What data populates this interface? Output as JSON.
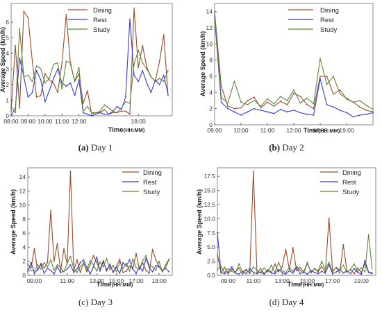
{
  "colors": {
    "dining": "#9b4a2a",
    "rest": "#3a3ad8",
    "study": "#5a8a3a"
  },
  "chart_data": [
    {
      "type": "line",
      "caption_letter": "(a)",
      "caption_text": "Day 1",
      "ylabel": "Average Speed (km/h)",
      "xlabel": "Time",
      "xlabel_unit": "(HH:MM)",
      "xlim": [
        0,
        38
      ],
      "ylim": [
        0,
        7.2
      ],
      "yticks": [
        0,
        1,
        2,
        3,
        4,
        5,
        6
      ],
      "xtick_labels": [
        {
          "x": 0,
          "label": "08:00"
        },
        {
          "x": 4,
          "label": "09:00"
        },
        {
          "x": 8,
          "label": "10:00"
        },
        {
          "x": 12,
          "label": "11:00"
        },
        {
          "x": 16,
          "label": "12:00"
        },
        {
          "x": 30,
          "label": "18:00"
        }
      ],
      "series": [
        {
          "name": "Dining",
          "color_key": "dining",
          "values": [
            0.3,
            4.5,
            0.5,
            6.7,
            6.3,
            3.5,
            1.2,
            1.3,
            2.7,
            2.3,
            2.1,
            1.5,
            3.4,
            6.5,
            3.3,
            2.2,
            2.7,
            0.8,
            1.6,
            0.1,
            0.2,
            0.2,
            0.4,
            0.1,
            0.2,
            0.2,
            0.3,
            0.3,
            0.1,
            6.9,
            3.1,
            4.5,
            3.1,
            2.5,
            2.2,
            3.5,
            5.2,
            1.3
          ]
        },
        {
          "name": "Rest",
          "color_key": "rest",
          "values": [
            0.0,
            0.5,
            3.7,
            2.5,
            1.2,
            1.5,
            2.9,
            2.3,
            0.9,
            1.6,
            2.4,
            3.0,
            2.1,
            1.9,
            2.1,
            1.3,
            2.3,
            0.2,
            0.1,
            0.0,
            0.1,
            0.2,
            0.1,
            0.1,
            0.3,
            0.6,
            0.4,
            1.2,
            6.2,
            2.6,
            2.2,
            2.9,
            2.1,
            1.5,
            2.3,
            2.0,
            2.6,
            1.4
          ]
        },
        {
          "name": "Study",
          "color_key": "study",
          "values": [
            0.6,
            0.2,
            5.6,
            2.5,
            2.6,
            2.2,
            3.2,
            3.0,
            2.1,
            2.4,
            3.3,
            3.4,
            1.7,
            3.5,
            3.4,
            2.2,
            3.1,
            0.3,
            0.6,
            0.2,
            0.2,
            0.3,
            0.7,
            0.5,
            0.3,
            0.2,
            0.5,
            0.9,
            0.8,
            3.3,
            4.2,
            3.4,
            3.0,
            2.5,
            2.2,
            2.4,
            2.2,
            2.9
          ]
        }
      ]
    },
    {
      "type": "line",
      "caption_letter": "(b)",
      "caption_text": "Day 2",
      "ylabel": "Average Speed (km/h)",
      "xlabel": "Time",
      "xlabel_unit": "(HH:MM)",
      "xlim": [
        0,
        24
      ],
      "ylim": [
        0,
        15
      ],
      "yticks": [
        0,
        2,
        4,
        6,
        8,
        10,
        12,
        14
      ],
      "xtick_labels": [
        {
          "x": 0,
          "label": "09:00"
        },
        {
          "x": 4,
          "label": "10:00"
        },
        {
          "x": 8,
          "label": "11:00"
        },
        {
          "x": 12,
          "label": "12:00"
        },
        {
          "x": 16,
          "label": "18:00"
        },
        {
          "x": 20,
          "label": "19:00"
        }
      ],
      "series": [
        {
          "name": "Dining",
          "color_key": "dining",
          "values": [
            14.0,
            4.8,
            2.3,
            2.0,
            2.1,
            3.0,
            3.4,
            2.1,
            2.8,
            2.3,
            2.9,
            2.5,
            3.9,
            3.5,
            2.5,
            2.0,
            6.0,
            6.0,
            3.8,
            4.3,
            3.2,
            2.8,
            2.2,
            1.8,
            1.6
          ]
        },
        {
          "name": "Rest",
          "color_key": "rest",
          "values": [
            13.3,
            2.8,
            2.0,
            1.6,
            1.2,
            1.6,
            2.0,
            1.8,
            1.6,
            1.4,
            1.9,
            1.6,
            1.8,
            1.5,
            1.3,
            1.2,
            5.7,
            2.5,
            2.2,
            1.8,
            1.5,
            1.0,
            1.2,
            1.3,
            1.5
          ]
        },
        {
          "name": "Study",
          "color_key": "study",
          "values": [
            13.8,
            3.4,
            2.7,
            5.4,
            2.8,
            2.5,
            3.0,
            2.3,
            3.2,
            2.6,
            3.5,
            3.0,
            4.3,
            2.7,
            3.3,
            2.6,
            8.2,
            5.0,
            6.0,
            3.8,
            3.3,
            2.8,
            3.0,
            2.4,
            1.9
          ]
        }
      ]
    },
    {
      "type": "line",
      "caption_letter": "(c)",
      "caption_text": "Day 3",
      "ylabel": "Average Speed (km/h)",
      "xlabel": "Time",
      "xlabel_unit": "(HH:MM)",
      "xlim": [
        0,
        44
      ],
      "ylim": [
        0,
        15.3
      ],
      "yticks": [
        0,
        2,
        4,
        6,
        8,
        10,
        12,
        14
      ],
      "xtick_labels": [
        {
          "x": 2,
          "label": "09:00"
        },
        {
          "x": 12,
          "label": "11:00"
        },
        {
          "x": 21,
          "label": "13:00"
        },
        {
          "x": 27,
          "label": "15:00"
        },
        {
          "x": 33,
          "label": "17:00"
        },
        {
          "x": 40,
          "label": "19:00"
        }
      ],
      "series": [
        {
          "name": "Dining",
          "color_key": "dining",
          "values": [
            1.6,
            1.0,
            3.8,
            0.7,
            1.7,
            1.0,
            1.8,
            9.2,
            2.0,
            4.5,
            0.6,
            3.8,
            1.6,
            14.8,
            0.7,
            2.2,
            0.4,
            1.8,
            0.5,
            1.5,
            2.8,
            1.8,
            0.8,
            2.1,
            0.6,
            1.6,
            0.4,
            1.3,
            2.3,
            0.4,
            0.6,
            1.3,
            0.9,
            3.1,
            0.8,
            1.8,
            0.7,
            0.3,
            3.7,
            2.2,
            1.3,
            0.5,
            1.5,
            2.3
          ]
        },
        {
          "name": "Rest",
          "color_key": "rest",
          "values": [
            0.5,
            1.8,
            0.3,
            0.8,
            1.5,
            0.3,
            1.0,
            0.7,
            0.2,
            1.2,
            0.4,
            0.6,
            0.9,
            1.5,
            0.4,
            0.9,
            1.8,
            2.2,
            1.1,
            0.2,
            1.2,
            2.6,
            0.6,
            1.9,
            0.8,
            1.4,
            0.5,
            1.1,
            0.3,
            1.8,
            1.3,
            2.2,
            0.9,
            0.3,
            1.2,
            0.6,
            2.4,
            1.1,
            0.5,
            1.4,
            1.2,
            0.7,
            1.0,
            0.5
          ]
        },
        {
          "name": "Study",
          "color_key": "study",
          "values": [
            0.9,
            0.7,
            0.6,
            1.5,
            0.9,
            1.8,
            1.2,
            2.2,
            0.7,
            1.5,
            1.1,
            0.5,
            1.7,
            2.7,
            1.0,
            0.4,
            1.3,
            1.6,
            0.8,
            2.1,
            1.5,
            0.6,
            1.9,
            1.2,
            2.4,
            0.8,
            1.4,
            0.5,
            1.9,
            1.0,
            1.7,
            0.6,
            2.3,
            1.1,
            0.9,
            2.1,
            2.8,
            1.4,
            1.2,
            0.7,
            2.0,
            0.5,
            1.1,
            2.2
          ]
        }
      ]
    },
    {
      "type": "line",
      "caption_letter": "(d)",
      "caption_text": "Day 4",
      "ylabel": "Average Speed (km/h)",
      "xlabel": "Time",
      "xlabel_unit": "(HH:MM)",
      "xlim": [
        0,
        44
      ],
      "ylim": [
        0,
        19
      ],
      "yticks": [
        0.0,
        2.5,
        5.0,
        7.5,
        10.0,
        12.5,
        15.0,
        17.5
      ],
      "xtick_labels": [
        {
          "x": 3,
          "label": "09:00"
        },
        {
          "x": 10,
          "label": "11:00"
        },
        {
          "x": 18,
          "label": "13:00"
        },
        {
          "x": 25,
          "label": "15:00"
        },
        {
          "x": 32,
          "label": "17:00"
        },
        {
          "x": 40,
          "label": "19:00"
        }
      ],
      "series": [
        {
          "name": "Dining",
          "color_key": "dining",
          "values": [
            3.8,
            0.4,
            1.4,
            0.3,
            1.1,
            0.6,
            1.3,
            0.2,
            0.9,
            0.5,
            18.4,
            0.4,
            1.2,
            0.3,
            1.0,
            0.5,
            2.0,
            0.6,
            1.5,
            4.6,
            1.0,
            4.9,
            0.8,
            1.4,
            0.6,
            2.3,
            0.4,
            1.2,
            0.6,
            1.6,
            0.5,
            10.1,
            0.8,
            1.3,
            0.4,
            5.4,
            0.6,
            1.0,
            0.3,
            1.3,
            0.5,
            2.1,
            0.5,
            0.3
          ]
        },
        {
          "name": "Rest",
          "color_key": "rest",
          "values": [
            7.5,
            0.5,
            0.3,
            0.6,
            1.5,
            0.4,
            0.2,
            0.7,
            0.3,
            1.2,
            0.5,
            0.3,
            0.6,
            0.2,
            0.9,
            0.4,
            0.3,
            1.0,
            0.5,
            0.2,
            0.8,
            0.4,
            1.4,
            0.3,
            0.6,
            0.2,
            0.9,
            0.5,
            0.3,
            0.7,
            0.4,
            1.9,
            0.3,
            0.6,
            1.1,
            0.4,
            0.8,
            0.3,
            1.2,
            0.5,
            0.2,
            2.6,
            0.6,
            0.4
          ]
        },
        {
          "name": "Study",
          "color_key": "study",
          "values": [
            1.0,
            1.6,
            0.5,
            1.2,
            0.7,
            0.4,
            2.0,
            0.6,
            1.1,
            0.3,
            1.5,
            0.9,
            0.4,
            1.3,
            0.6,
            1.8,
            0.5,
            2.3,
            0.8,
            0.5,
            1.4,
            0.7,
            1.6,
            0.9,
            0.4,
            2.1,
            0.6,
            1.2,
            0.8,
            2.5,
            1.0,
            2.3,
            0.6,
            1.4,
            0.9,
            1.8,
            0.5,
            1.1,
            2.0,
            0.7,
            1.3,
            0.6,
            7.2,
            1.2
          ]
        }
      ]
    }
  ]
}
